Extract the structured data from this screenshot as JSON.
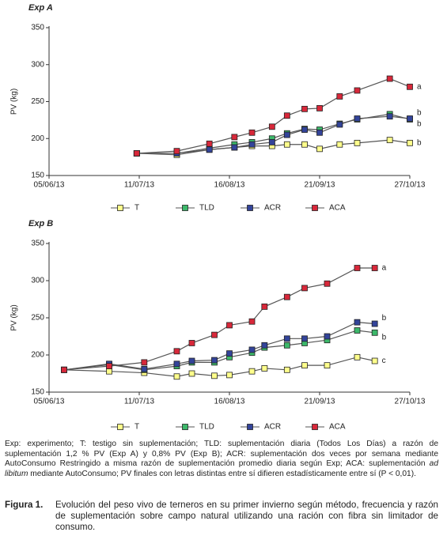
{
  "chart_data": [
    {
      "type": "line",
      "title": "Exp A",
      "ylabel": "PV (kg)",
      "legend": "bottom",
      "x": [
        "2013-07-10",
        "2013-07-26",
        "2013-08-08",
        "2013-08-18",
        "2013-08-25",
        "2013-09-02",
        "2013-09-08",
        "2013-09-15",
        "2013-09-21",
        "2013-09-29",
        "2013-10-06",
        "2013-10-19",
        "2013-10-27"
      ],
      "xlim": [
        "2013-06-05",
        "2013-10-27"
      ],
      "xticks": [
        {
          "value": "2013-06-05",
          "label": "05/06/13"
        },
        {
          "value": "2013-07-11",
          "label": "11/07/13"
        },
        {
          "value": "2013-08-16",
          "label": "16/08/13"
        },
        {
          "value": "2013-09-21",
          "label": "21/09/13"
        },
        {
          "value": "2013-10-27",
          "label": "27/10/13"
        }
      ],
      "ylim": [
        150,
        350
      ],
      "yticks": [
        150,
        200,
        250,
        300,
        350
      ],
      "series": [
        {
          "name": "T",
          "color": "#ffff8c",
          "end_label": "b",
          "values": [
            180,
            178,
            185,
            188,
            190,
            190,
            192,
            192,
            186,
            192,
            194,
            198,
            194
          ]
        },
        {
          "name": "TLD",
          "color": "#3cb86a",
          "end_label": "b",
          "values": [
            180,
            180,
            187,
            192,
            195,
            200,
            207,
            213,
            212,
            220,
            226,
            233,
            226
          ]
        },
        {
          "name": "ACR",
          "color": "#33449a",
          "end_label": "b",
          "values": [
            180,
            180,
            185,
            188,
            192,
            195,
            205,
            212,
            208,
            219,
            227,
            230,
            227
          ]
        },
        {
          "name": "ACA",
          "color": "#d8283a",
          "end_label": "a",
          "values": [
            180,
            183,
            193,
            202,
            208,
            216,
            231,
            240,
            241,
            257,
            265,
            281,
            270
          ]
        }
      ]
    },
    {
      "type": "line",
      "title": "Exp B",
      "ylabel": "PV (kg)",
      "legend": "bottom",
      "x": [
        "2013-06-11",
        "2013-06-29",
        "2013-07-13",
        "2013-07-26",
        "2013-08-01",
        "2013-08-10",
        "2013-08-16",
        "2013-08-25",
        "2013-08-30",
        "2013-09-08",
        "2013-09-15",
        "2013-09-24",
        "2013-10-06",
        "2013-10-13"
      ],
      "xlim": [
        "2013-06-05",
        "2013-10-27"
      ],
      "xticks": [
        {
          "value": "2013-06-05",
          "label": "05/06/13"
        },
        {
          "value": "2013-07-11",
          "label": "11/07/13"
        },
        {
          "value": "2013-08-16",
          "label": "16/08/13"
        },
        {
          "value": "2013-09-21",
          "label": "21/09/13"
        },
        {
          "value": "2013-10-27",
          "label": "27/10/13"
        }
      ],
      "ylim": [
        150,
        350
      ],
      "yticks": [
        150,
        200,
        250,
        300,
        350
      ],
      "series": [
        {
          "name": "T",
          "color": "#ffff8c",
          "end_label": "c",
          "values": [
            180,
            178,
            176,
            171,
            175,
            172,
            173,
            178,
            182,
            180,
            186,
            186,
            197,
            192
          ]
        },
        {
          "name": "TLD",
          "color": "#3cb86a",
          "end_label": "b",
          "values": [
            180,
            187,
            180,
            185,
            190,
            190,
            197,
            203,
            210,
            213,
            216,
            220,
            233,
            230
          ]
        },
        {
          "name": "ACR",
          "color": "#33449a",
          "end_label": "b",
          "values": [
            180,
            188,
            181,
            188,
            192,
            193,
            202,
            207,
            213,
            222,
            222,
            225,
            244,
            242
          ]
        },
        {
          "name": "ACA",
          "color": "#d8283a",
          "end_label": "a",
          "values": [
            180,
            185,
            190,
            205,
            216,
            227,
            240,
            245,
            265,
            278,
            290,
            296,
            317,
            317
          ]
        }
      ]
    }
  ],
  "notes": [
    "Exp: experimento; T: testigo sin suplementación; TLD: suplementación diaria (Todos Los Días) a razón de suplementación 1,2 % PV (Exp A) y 0,8% PV (Exp B); ACR: suplementación dos veces por semana mediante AutoConsumo Restringido a misma razón de suplementación promedio diaria según Exp; ACA: suplementación ",
    "ad libitum",
    " mediante AutoConsumo; PV finales con letras distintas entre sí difieren estadísticamente entre sí (P < 0,01)."
  ],
  "figure_label": "Figura 1.",
  "figure_caption": "Evolución del peso vivo de terneros en su primer invierno según método, frecuencia y razón de suplementación sobre campo natural utilizando una ración con fibra sin limitador de consumo."
}
